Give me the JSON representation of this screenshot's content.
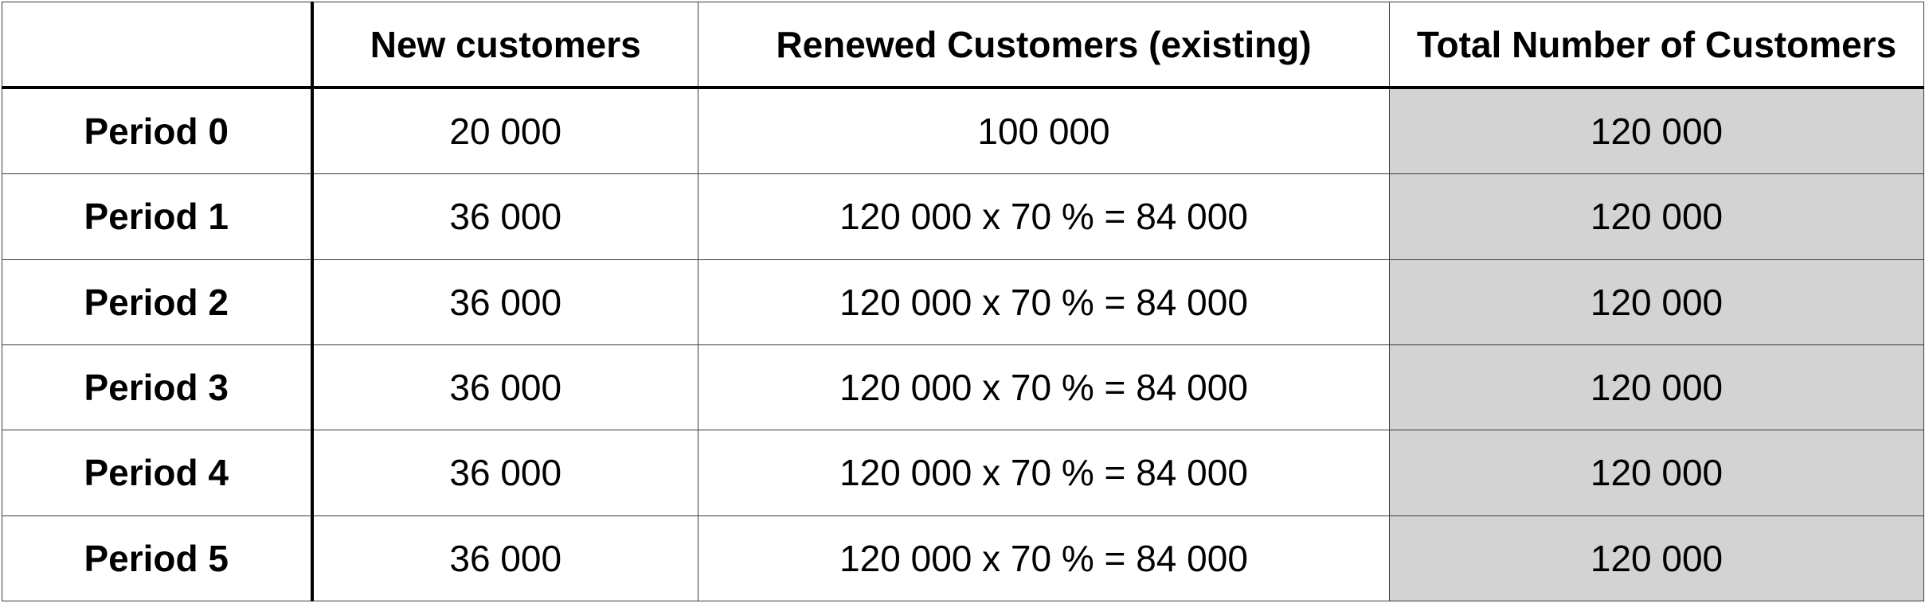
{
  "table": {
    "headers": [
      "",
      "New customers",
      "Renewed Customers (existing)",
      "Total Number of Customers"
    ],
    "rows": [
      {
        "period": "Period 0",
        "new": "20 000",
        "renewed": "100 000",
        "total": "120 000"
      },
      {
        "period": "Period 1",
        "new": "36 000",
        "renewed": "120 000 x 70 % = 84 000",
        "total": "120 000"
      },
      {
        "period": "Period 2",
        "new": "36 000",
        "renewed": "120 000 x 70 % = 84 000",
        "total": "120 000"
      },
      {
        "period": "Period 3",
        "new": "36 000",
        "renewed": "120 000 x 70 % = 84 000",
        "total": "120 000"
      },
      {
        "period": "Period 4",
        "new": "36 000",
        "renewed": "120 000 x 70 % = 84 000",
        "total": "120 000"
      },
      {
        "period": "Period 5",
        "new": "36 000",
        "renewed": "120 000 x 70 % = 84 000",
        "total": "120 000"
      }
    ],
    "colors": {
      "total_column_fill": "#d3d3d3",
      "border": "#3a3a3a",
      "heavy_border": "#000000"
    }
  }
}
